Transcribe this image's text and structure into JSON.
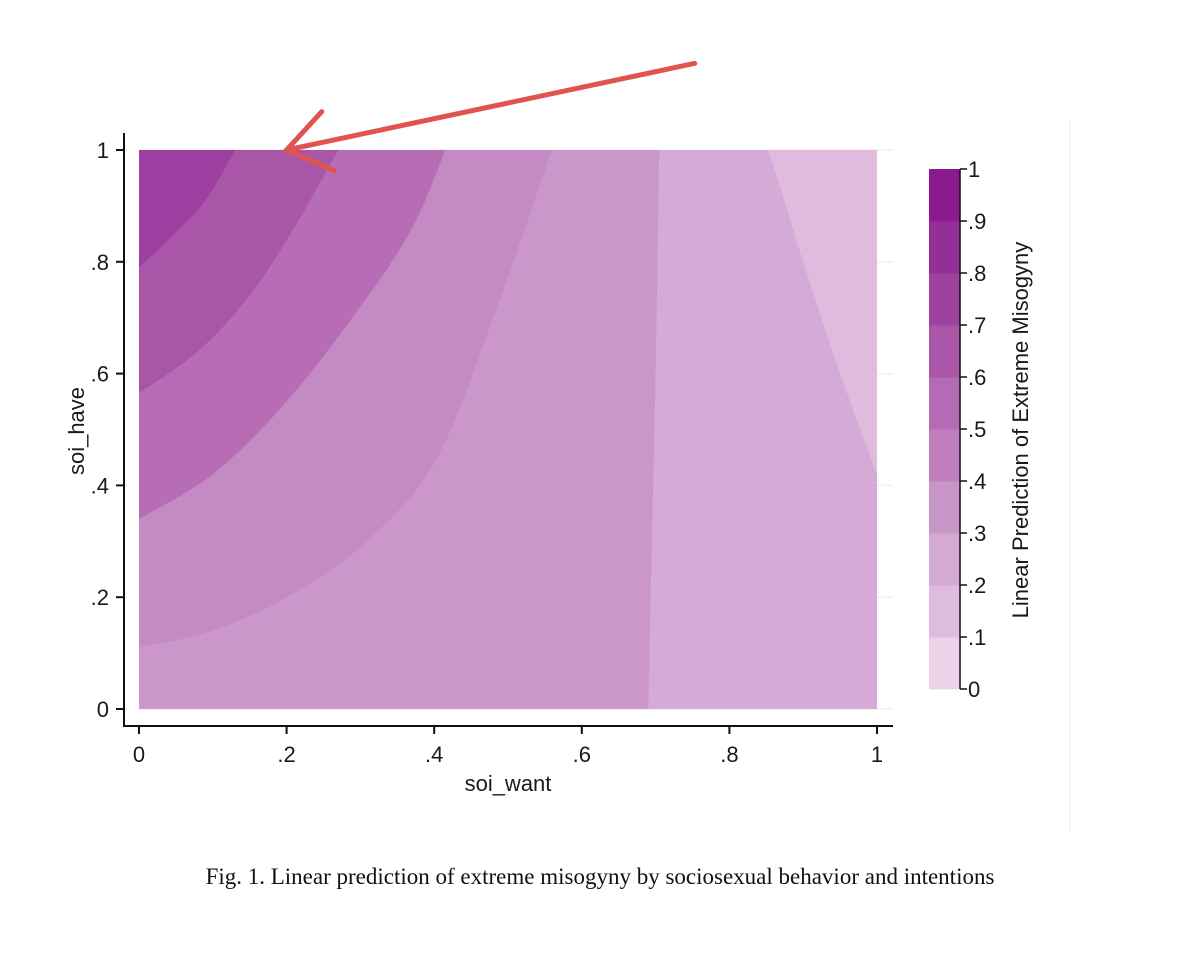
{
  "chart_data": {
    "type": "heatmap",
    "subtype": "filled-contour",
    "xlabel": "soi_want",
    "ylabel": "soi_have",
    "xlim": [
      0,
      1
    ],
    "ylim": [
      0,
      1
    ],
    "x_ticks": [
      0,
      0.2,
      0.4,
      0.6,
      0.8,
      1
    ],
    "x_tick_labels": [
      "0",
      ".2",
      ".4",
      ".6",
      ".8",
      "1"
    ],
    "y_ticks": [
      0,
      0.2,
      0.4,
      0.6,
      0.8,
      1
    ],
    "y_tick_labels": [
      "0",
      ".2",
      ".4",
      ".6",
      ".8",
      "1"
    ],
    "grid": true,
    "colorbar": {
      "title": "Linear Prediction of Extreme Misogyny",
      "levels": [
        0,
        0.1,
        0.2,
        0.3,
        0.4,
        0.5,
        0.6,
        0.7,
        0.8,
        0.9,
        1
      ],
      "tick_labels": [
        "0",
        ".1",
        ".2",
        ".3",
        ".4",
        ".5",
        ".6",
        ".7",
        ".8",
        ".9",
        "1"
      ],
      "colors": [
        "#ebd3e9",
        "#dfbcde",
        "#d4a9d4",
        "#c996ca",
        "#bf7fbf",
        "#b46bb4",
        "#a955a8",
        "#9e42a0",
        "#952f98",
        "#8a1a8d"
      ],
      "placement": "right"
    },
    "contour_boundaries": [
      {
        "level": 0.2,
        "points": [
          [
            0.69,
            0
          ],
          [
            0.695,
            0.3
          ],
          [
            0.7,
            0.6
          ],
          [
            0.705,
            1
          ]
        ]
      },
      {
        "level": 0.1,
        "points": [
          [
            1.0,
            0.42
          ],
          [
            0.95,
            0.6
          ],
          [
            0.9,
            0.8
          ],
          [
            0.865,
            0.95
          ],
          [
            0.852,
            1
          ]
        ]
      },
      {
        "level": 0.3,
        "points": [
          [
            0,
            0.11
          ],
          [
            0.1,
            0.14
          ],
          [
            0.2,
            0.2
          ],
          [
            0.3,
            0.29
          ],
          [
            0.4,
            0.44
          ],
          [
            0.48,
            0.7
          ],
          [
            0.56,
            1
          ]
        ]
      },
      {
        "level": 0.4,
        "points": [
          [
            0,
            0.34
          ],
          [
            0.1,
            0.42
          ],
          [
            0.2,
            0.55
          ],
          [
            0.3,
            0.72
          ],
          [
            0.37,
            0.86
          ],
          [
            0.415,
            1
          ]
        ]
      },
      {
        "level": 0.5,
        "points": [
          [
            0,
            0.565
          ],
          [
            0.08,
            0.64
          ],
          [
            0.15,
            0.74
          ],
          [
            0.21,
            0.86
          ],
          [
            0.27,
            1
          ]
        ]
      },
      {
        "level": 0.6,
        "points": [
          [
            0,
            0.79
          ],
          [
            0.04,
            0.84
          ],
          [
            0.09,
            0.91
          ],
          [
            0.13,
            1
          ]
        ]
      }
    ],
    "region_fill_colors": [
      "#d4a9d4",
      "#dfbcde",
      "#c996ca",
      "#bf7fbf",
      "#b46bb4",
      "#a955a8",
      "#9e42a0"
    ],
    "annotations": [
      {
        "kind": "arrow",
        "color": "#e0534f",
        "from": [
          0.753,
          1.155
        ],
        "to": [
          0.2,
          1
        ]
      }
    ],
    "caption": "Fig. 1. Linear prediction of extreme misogyny by sociosexual behavior and intentions"
  }
}
